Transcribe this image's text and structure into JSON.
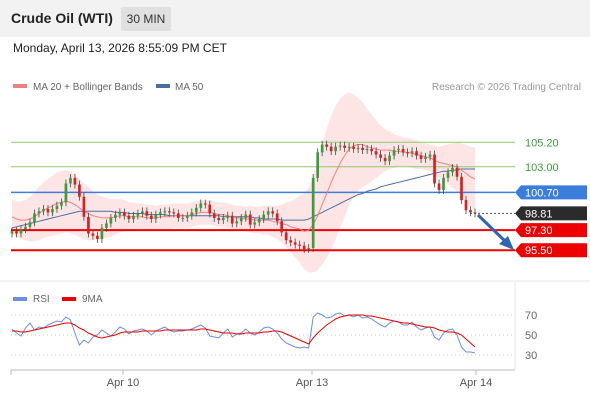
{
  "header": {
    "instrument": "Crude Oil (WTI)",
    "timeframe": "30 MIN",
    "datetime": "Monday, April 13, 2026 8:55:09 PM CET",
    "credit": "Research © 2026 Trading Central"
  },
  "colors": {
    "up": "#3c9c3c",
    "down": "#d91f1f",
    "ma20": "#f08080",
    "ma50": "#4a6fa5",
    "band_fill": "#fde1e1",
    "pivot": "#3b7ddd",
    "support": "#ee0000",
    "resistance": "#8fc96b",
    "rsi": "#6b8ee6",
    "rsi_ma": "#ee0000",
    "arrow": "#2f66b3"
  },
  "chart_data": [
    {
      "type": "candlestick",
      "title": "",
      "legend": [
        "MA 20 + Bollinger Bands",
        "MA 50"
      ],
      "legend_position": "top-left",
      "grid": false,
      "x_labels": [
        "Apr 10",
        "Apr 13",
        "Apr 14"
      ],
      "ylim": [
        93,
        109
      ],
      "levels": [
        {
          "name": "resistance-2",
          "value": 105.2,
          "label": "105.20",
          "kind": "resistance"
        },
        {
          "name": "resistance-1",
          "value": 103.0,
          "label": "103.00",
          "kind": "resistance"
        },
        {
          "name": "pivot",
          "value": 100.7,
          "label": "100.70",
          "kind": "pivot"
        },
        {
          "name": "last-price",
          "value": 98.81,
          "label": "98.81",
          "kind": "last"
        },
        {
          "name": "support-1",
          "value": 97.3,
          "label": "97.30",
          "kind": "support"
        },
        {
          "name": "support-2",
          "value": 95.5,
          "label": "95.50",
          "kind": "support"
        }
      ],
      "candles_close": [
        97.2,
        97.0,
        97.4,
        97.6,
        98.0,
        98.8,
        99.0,
        99.2,
        98.9,
        99.2,
        99.5,
        99.8,
        101.5,
        102.0,
        101.4,
        100.3,
        98.5,
        97.0,
        96.8,
        96.5,
        97.5,
        97.9,
        98.4,
        98.7,
        98.9,
        98.6,
        98.3,
        98.6,
        98.8,
        99.0,
        98.6,
        98.3,
        98.7,
        98.9,
        99.0,
        98.9,
        98.8,
        98.4,
        98.4,
        98.6,
        98.9,
        99.3,
        99.7,
        99.6,
        98.8,
        98.4,
        98.2,
        98.4,
        98.6,
        97.9,
        98.1,
        98.4,
        98.7,
        97.8,
        98.0,
        98.3,
        98.7,
        99.0,
        98.8,
        98.1,
        97.1,
        96.4,
        96.2,
        96.0,
        95.9,
        95.6,
        95.7,
        102.0,
        104.3,
        105.0,
        104.8,
        104.4,
        104.8,
        104.9,
        104.7,
        104.8,
        104.6,
        104.7,
        104.5,
        104.6,
        104.4,
        104.1,
        103.8,
        103.5,
        104.0,
        104.5,
        104.6,
        104.3,
        104.2,
        104.4,
        104.0,
        103.7,
        103.9,
        104.1,
        101.5,
        100.9,
        102.0,
        102.5,
        102.9,
        102.1,
        100.0,
        99.1,
        98.9,
        98.81
      ],
      "ma20": [
        98.5,
        98.3,
        98.2,
        98.2,
        98.3,
        98.5,
        98.8,
        99.1,
        99.3,
        99.5,
        99.7,
        99.8,
        99.9,
        99.8,
        99.6,
        99.3,
        99.0,
        98.8,
        98.6,
        98.5,
        98.4,
        98.4,
        98.4,
        98.5,
        98.6,
        98.6,
        98.5,
        98.5,
        98.5,
        98.5,
        98.4,
        98.4,
        98.4,
        98.5,
        98.5,
        98.5,
        98.6,
        98.6,
        98.6,
        98.6,
        98.7,
        98.8,
        98.9,
        98.9,
        98.9,
        98.8,
        98.7,
        98.7,
        98.6,
        98.5,
        98.4,
        98.4,
        98.3,
        98.3,
        98.2,
        98.2,
        98.2,
        98.2,
        98.1,
        98.0,
        97.9,
        97.8,
        97.6,
        97.5,
        97.4,
        97.2,
        97.3,
        97.8,
        98.6,
        99.6,
        100.6,
        101.6,
        102.5,
        103.3,
        104.0,
        104.6,
        104.9,
        105.0,
        105.0,
        104.8,
        104.7,
        104.6,
        104.5,
        104.5,
        104.5,
        104.4,
        104.4,
        104.3,
        104.3,
        104.2,
        104.1,
        104.0,
        103.9,
        103.8,
        103.6,
        103.4,
        103.3,
        103.2,
        103.1,
        103.0,
        102.7,
        102.4,
        102.1,
        101.9
      ],
      "ma50": [
        97.5,
        97.6,
        97.7,
        97.8,
        97.9,
        98.0,
        98.1,
        98.2,
        98.3,
        98.4,
        98.5,
        98.6,
        98.7,
        98.8,
        98.9,
        99.0,
        99.0,
        99.0,
        99.0,
        99.0,
        99.0,
        99.0,
        99.0,
        98.9,
        98.9,
        98.9,
        98.8,
        98.8,
        98.8,
        98.8,
        98.7,
        98.7,
        98.7,
        98.7,
        98.7,
        98.6,
        98.6,
        98.6,
        98.6,
        98.6,
        98.6,
        98.6,
        98.6,
        98.6,
        98.6,
        98.6,
        98.6,
        98.5,
        98.5,
        98.5,
        98.5,
        98.5,
        98.5,
        98.5,
        98.4,
        98.4,
        98.3,
        98.3,
        98.3,
        98.3,
        98.2,
        98.2,
        98.2,
        98.2,
        98.2,
        98.2,
        98.3,
        98.5,
        98.7,
        98.9,
        99.1,
        99.3,
        99.5,
        99.7,
        99.9,
        100.1,
        100.3,
        100.5,
        100.6,
        100.8,
        100.9,
        101.0,
        101.2,
        101.3,
        101.4,
        101.5,
        101.6,
        101.7,
        101.8,
        101.9,
        102.0,
        102.1,
        102.2,
        102.3,
        102.4,
        102.5,
        102.6,
        102.6,
        102.7,
        102.7,
        102.8,
        102.8,
        102.8,
        102.8
      ],
      "band_width": [
        1.6,
        1.6,
        1.7,
        1.8,
        2.0,
        2.2,
        2.4,
        2.5,
        2.6,
        2.7,
        2.8,
        2.8,
        2.8,
        2.8,
        2.7,
        2.6,
        2.5,
        2.4,
        2.2,
        2.0,
        1.9,
        1.8,
        1.7,
        1.6,
        1.5,
        1.4,
        1.3,
        1.3,
        1.2,
        1.2,
        1.2,
        1.2,
        1.1,
        1.1,
        1.1,
        1.1,
        1.1,
        1.1,
        1.1,
        1.1,
        1.1,
        1.1,
        1.1,
        1.1,
        1.1,
        1.1,
        1.1,
        1.1,
        1.1,
        1.1,
        1.1,
        1.1,
        1.1,
        1.2,
        1.2,
        1.2,
        1.3,
        1.3,
        1.4,
        1.5,
        1.7,
        2.0,
        2.3,
        2.6,
        3.0,
        3.4,
        3.8,
        4.3,
        4.9,
        5.4,
        5.8,
        6.0,
        6.0,
        5.8,
        5.5,
        5.1,
        4.6,
        4.2,
        3.8,
        3.4,
        3.0,
        2.6,
        2.2,
        1.9,
        1.7,
        1.5,
        1.4,
        1.3,
        1.3,
        1.3,
        1.3,
        1.2,
        1.2,
        1.2,
        1.3,
        1.4,
        1.6,
        1.8,
        2.0,
        2.2,
        2.4,
        2.6,
        2.7,
        2.8
      ]
    },
    {
      "type": "line",
      "title": "",
      "legend": [
        "RSI",
        "9MA"
      ],
      "ylim": [
        20,
        80
      ],
      "yticks": [
        70,
        50,
        30
      ],
      "series": [
        {
          "name": "RSI",
          "values": [
            56,
            52,
            49,
            57,
            62,
            55,
            58,
            57,
            60,
            62,
            64,
            63,
            68,
            65,
            52,
            40,
            45,
            42,
            48,
            50,
            55,
            52,
            49,
            53,
            58,
            56,
            51,
            54,
            55,
            56,
            54,
            50,
            54,
            56,
            58,
            55,
            53,
            54,
            54,
            55,
            56,
            58,
            60,
            57,
            49,
            48,
            47,
            52,
            56,
            48,
            51,
            52,
            56,
            52,
            50,
            53,
            57,
            58,
            56,
            52,
            46,
            42,
            40,
            38,
            37,
            38,
            37,
            68,
            72,
            70,
            67,
            68,
            71,
            72,
            69,
            70,
            68,
            70,
            67,
            68,
            66,
            63,
            60,
            58,
            62,
            64,
            63,
            60,
            60,
            63,
            58,
            55,
            57,
            58,
            48,
            45,
            52,
            55,
            56,
            50,
            38,
            33,
            33,
            32
          ]
        },
        {
          "name": "9MA",
          "values": [
            54,
            54,
            53,
            53,
            54,
            55,
            56,
            57,
            58,
            59,
            60,
            61,
            62,
            62,
            60,
            57,
            55,
            52,
            50,
            48,
            47,
            48,
            49,
            50,
            52,
            53,
            53,
            53,
            53,
            54,
            54,
            54,
            54,
            54,
            55,
            55,
            55,
            55,
            55,
            55,
            55,
            55,
            56,
            56,
            55,
            54,
            53,
            52,
            52,
            52,
            51,
            51,
            52,
            52,
            52,
            52,
            53,
            53,
            54,
            54,
            53,
            51,
            49,
            47,
            45,
            43,
            41,
            47,
            52,
            56,
            60,
            63,
            66,
            68,
            69,
            70,
            70,
            70,
            70,
            69,
            69,
            68,
            67,
            66,
            65,
            64,
            63,
            62,
            62,
            61,
            60,
            59,
            58,
            58,
            57,
            55,
            54,
            53,
            53,
            52,
            50,
            46,
            42,
            38
          ]
        }
      ]
    }
  ]
}
